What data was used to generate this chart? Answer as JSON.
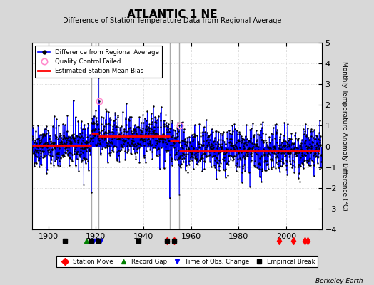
{
  "title": "ATLANTIC 1 NE",
  "subtitle": "Difference of Station Temperature Data from Regional Average",
  "ylabel": "Monthly Temperature Anomaly Difference (°C)",
  "xlim": [
    1893,
    2015
  ],
  "ylim": [
    -4,
    5
  ],
  "yticks": [
    -4,
    -3,
    -2,
    -1,
    0,
    1,
    2,
    3,
    4,
    5
  ],
  "xticks": [
    1900,
    1920,
    1940,
    1960,
    1980,
    2000
  ],
  "background_color": "#d8d8d8",
  "plot_bg_color": "#ffffff",
  "seed": 42,
  "start_year": 1893,
  "end_year": 2014,
  "bias_segments": [
    {
      "x_start": 1893,
      "x_end": 1918,
      "bias": 0.05
    },
    {
      "x_start": 1918,
      "x_end": 1921,
      "bias": 0.65
    },
    {
      "x_start": 1921,
      "x_end": 1951,
      "bias": 0.5
    },
    {
      "x_start": 1951,
      "x_end": 1955,
      "bias": 0.25
    },
    {
      "x_start": 1955,
      "x_end": 2014,
      "bias": -0.22
    }
  ],
  "vertical_lines": [
    1918,
    1921,
    1951,
    1955
  ],
  "station_moves": [
    1950,
    1953,
    1997,
    2003,
    2008,
    2009
  ],
  "record_gaps": [
    1916
  ],
  "obs_changes": [
    1919,
    1921,
    1922
  ],
  "empirical_breaks": [
    1907,
    1918,
    1921,
    1938,
    1950,
    1953
  ],
  "qc_failed_years": [
    1921.3,
    1955.2
  ],
  "qc_failed_vals": [
    2.2,
    1.0
  ],
  "watermark": "Berkeley Earth",
  "noise_std": 0.55,
  "spike_years": [
    1918,
    1921,
    1951,
    1955
  ],
  "spike_vals": [
    -2.2,
    3.3,
    -2.5,
    -2.3
  ]
}
